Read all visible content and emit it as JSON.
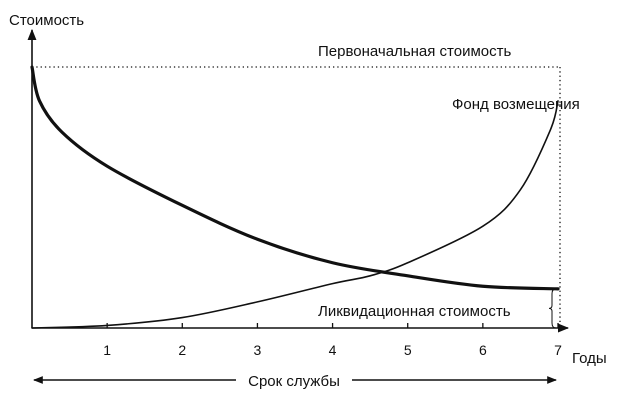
{
  "chart_data": {
    "type": "line",
    "title": "",
    "ylabel": "Стоимость",
    "xlabel": "Годы",
    "xlim": [
      0,
      7
    ],
    "ylim": [
      0,
      1
    ],
    "x_ticks": [
      "1",
      "2",
      "3",
      "4",
      "5",
      "6",
      "7"
    ],
    "grid": false,
    "y_tick_labels": false,
    "series": [
      {
        "name": "Ликвидационная стоимость",
        "style": "thick",
        "x": [
          0,
          0.1,
          0.4,
          1,
          2,
          3,
          4,
          5,
          6,
          7
        ],
        "y": [
          1.0,
          0.87,
          0.75,
          0.62,
          0.47,
          0.34,
          0.25,
          0.2,
          0.16,
          0.15
        ]
      },
      {
        "name": "Фонд возмещения",
        "style": "thin",
        "x": [
          0,
          1,
          2,
          3,
          4,
          4.5,
          5,
          6,
          6.5,
          6.9,
          7
        ],
        "y": [
          0,
          0.01,
          0.04,
          0.1,
          0.17,
          0.2,
          0.25,
          0.39,
          0.53,
          0.76,
          0.87
        ]
      }
    ],
    "reference_lines": {
      "initial_cost": {
        "label": "Первоначальная стоимость",
        "y": 1.0,
        "style": "dotted"
      },
      "end_of_life": {
        "x": 7,
        "style": "dotted"
      }
    },
    "annotations": {
      "salvage_value_label": "Ликвидационная стоимость",
      "salvage_value": 0.15,
      "replacement_fund_label": "Фонд возмещения",
      "service_life_label": "Срок службы"
    },
    "colors": {
      "ink": "#111111",
      "background": "#ffffff"
    }
  }
}
